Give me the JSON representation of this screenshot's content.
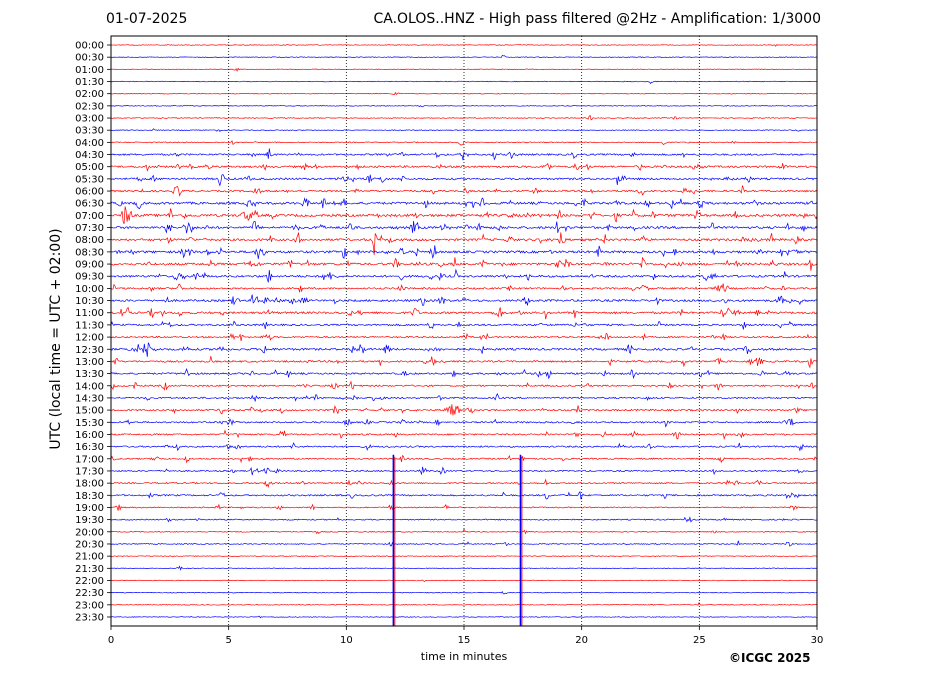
{
  "header": {
    "date": "01-07-2025",
    "title": "CA.OLOS..HNZ - High pass filtered @2Hz - Amplification: 1/3000"
  },
  "footer": {
    "copyright": "©ICGC 2025"
  },
  "chart_data": {
    "type": "line",
    "title": "CA.OLOS..HNZ - High pass filtered @2Hz - Amplification: 1/3000",
    "xlabel": "time in minutes",
    "ylabel": "UTC (local time = UTC + 02:00)",
    "xlim": [
      0,
      30
    ],
    "xticks": [
      0,
      5,
      10,
      15,
      20,
      25,
      30
    ],
    "vertical_gridlines_minutes": [
      5,
      10,
      15,
      20,
      25
    ],
    "grid": "vertical dotted",
    "row_labels": [
      "00:00",
      "00:30",
      "01:00",
      "01:30",
      "02:00",
      "02:30",
      "03:00",
      "03:30",
      "04:00",
      "04:30",
      "05:00",
      "05:30",
      "06:00",
      "06:30",
      "07:00",
      "07:30",
      "08:00",
      "08:30",
      "09:00",
      "09:30",
      "10:00",
      "10:30",
      "11:00",
      "11:30",
      "12:00",
      "12:30",
      "13:00",
      "13:30",
      "14:00",
      "14:30",
      "15:00",
      "15:30",
      "16:00",
      "16:30",
      "17:00",
      "17:30",
      "18:00",
      "18:30",
      "19:00",
      "19:30",
      "20:00",
      "20:30",
      "21:00",
      "21:30",
      "22:00",
      "22:30",
      "23:00",
      "23:30"
    ],
    "trace_colors": [
      "#ff0000",
      "#0000ff"
    ],
    "activity_level": [
      0.05,
      0.05,
      0.05,
      0.05,
      0.05,
      0.05,
      0.1,
      0.1,
      0.2,
      0.6,
      0.7,
      0.7,
      0.6,
      0.9,
      1.0,
      0.9,
      0.9,
      0.9,
      0.9,
      0.8,
      0.6,
      0.8,
      0.8,
      0.6,
      0.5,
      0.8,
      0.6,
      0.6,
      0.5,
      0.5,
      0.6,
      0.5,
      0.5,
      0.5,
      0.4,
      0.4,
      0.4,
      0.5,
      0.3,
      0.3,
      0.15,
      0.2,
      0.05,
      0.05,
      0.05,
      0.05,
      0.05,
      0.05
    ],
    "large_events": [
      {
        "row": "17:00",
        "minute": 12.0
      },
      {
        "row": "17:00",
        "minute": 17.4
      }
    ]
  }
}
